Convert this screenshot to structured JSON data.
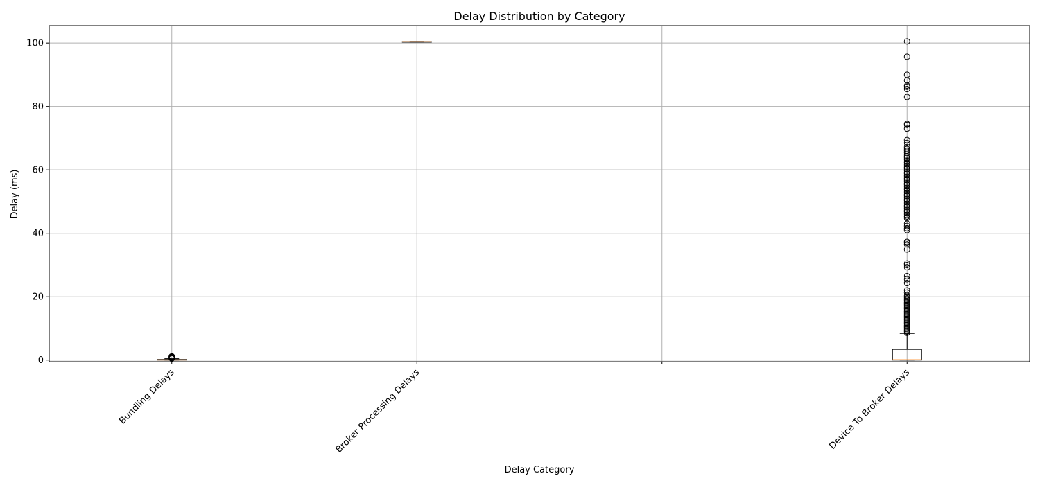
{
  "chart_data": {
    "type": "box",
    "title": "Delay Distribution by Category",
    "xlabel": "Delay Category",
    "ylabel": "Delay (ms)",
    "ylim": [
      -0.5,
      105.5
    ],
    "xlim": [
      0.5,
      4.5
    ],
    "yticks": [
      0,
      20,
      40,
      60,
      80,
      100
    ],
    "grid": true,
    "colors": {
      "box": "#000000",
      "median": "#ff7f0e",
      "grid": "#b0b0b0",
      "flier": "#000000"
    },
    "categories": [
      {
        "label": "Bundling Delays",
        "x": 1,
        "stats": {
          "whisker_low": 0,
          "q1": 0,
          "median": 0.05,
          "q3": 0.2,
          "whisker_high": 0.45
        },
        "outliers": [
          0.5,
          0.6,
          0.7,
          0.8,
          0.9,
          1.0,
          1.1,
          1.2
        ]
      },
      {
        "label": "Broker Processing Delays",
        "x": 2,
        "stats": {
          "whisker_low": 100.3,
          "q1": 100.35,
          "median": 100.4,
          "q3": 100.45,
          "whisker_high": 100.5
        },
        "outliers": []
      },
      {
        "label": "",
        "x": 3,
        "empty": true
      },
      {
        "label": "Device To Broker Delays",
        "x": 4,
        "stats": {
          "whisker_low": 0,
          "q1": 0,
          "median": 0.1,
          "q3": 3.4,
          "whisker_high": 8.4
        },
        "outliers": [
          8.6,
          9,
          9.4,
          9.8,
          10.2,
          10.6,
          11,
          11.4,
          11.8,
          12.2,
          12.6,
          13,
          13.4,
          13.8,
          14.2,
          14.6,
          15,
          15.4,
          15.8,
          16.2,
          16.6,
          17,
          17.4,
          17.8,
          18.2,
          18.6,
          19,
          19.4,
          19.8,
          20.3,
          21.3,
          22,
          24.3,
          25.5,
          26.5,
          29.3,
          30,
          30.5,
          34.9,
          36.5,
          37,
          37.3,
          41,
          41.6,
          42.3,
          43,
          44.8,
          45.3,
          45.8,
          46.3,
          46.8,
          47.3,
          47.8,
          48.3,
          48.8,
          49.3,
          49.8,
          50.3,
          50.8,
          51.3,
          51.8,
          52.3,
          52.8,
          53.3,
          53.8,
          54.3,
          54.8,
          55.3,
          55.8,
          56.3,
          56.8,
          57.3,
          57.8,
          58.3,
          58.8,
          59.3,
          59.8,
          60.3,
          60.8,
          61.3,
          61.8,
          62.3,
          62.8,
          63.3,
          63.8,
          64.3,
          64.8,
          65.4,
          66,
          66.6,
          67.2,
          68.5,
          69.4,
          73,
          74.2,
          74.5,
          83,
          85.5,
          86.2,
          86.6,
          88.2,
          90,
          95.7,
          100.5
        ]
      }
    ]
  }
}
